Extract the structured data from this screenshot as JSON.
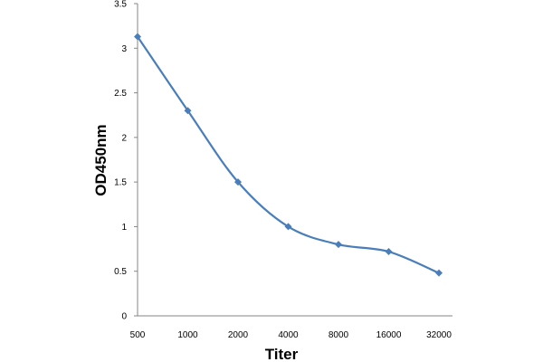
{
  "chart_data": {
    "type": "line",
    "title": "",
    "xlabel": "Titer",
    "ylabel": "OD450nm",
    "categories": [
      "500",
      "1000",
      "2000",
      "4000",
      "8000",
      "16000",
      "32000"
    ],
    "series": [
      {
        "values": [
          3.13,
          2.3,
          1.5,
          1.0,
          0.8,
          0.72,
          0.48
        ],
        "color": "#4a7ebb",
        "marker": "diamond",
        "smooth": true
      }
    ],
    "ylim": [
      0,
      3.5
    ],
    "yticks": [
      0,
      0.5,
      1,
      1.5,
      2,
      2.5,
      3,
      3.5
    ],
    "ytick_labels": [
      "0",
      "0.5",
      "1",
      "1.5",
      "2",
      "2.5",
      "3",
      "3.5"
    ],
    "grid": false,
    "legend": "none"
  }
}
